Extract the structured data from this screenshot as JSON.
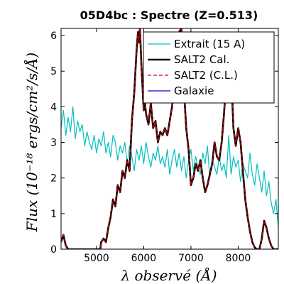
{
  "chart_data": {
    "type": "line",
    "title": "05D4bc : Spectre (Z=0.513)",
    "xlabel": "λ observé (Å)",
    "ylabel": "Flux (10⁻¹⁸ ergs/cm²/s/Å)",
    "xlim": [
      4250,
      8850
    ],
    "ylim": [
      0,
      6.2
    ],
    "xticks": [
      5000,
      6000,
      7000,
      8000
    ],
    "yticks": [
      0,
      1,
      2,
      3,
      4,
      5,
      6
    ],
    "legend_position": "top-right",
    "grid": false,
    "series": [
      {
        "name": "Extrait (15 A)",
        "color": "#00bfbf",
        "style": "solid",
        "x": [
          4250,
          4300,
          4350,
          4400,
          4450,
          4500,
          4550,
          4600,
          4650,
          4700,
          4750,
          4800,
          4850,
          4900,
          4950,
          5000,
          5050,
          5100,
          5150,
          5200,
          5250,
          5300,
          5350,
          5400,
          5450,
          5500,
          5550,
          5600,
          5650,
          5700,
          5750,
          5800,
          5850,
          5900,
          5950,
          6000,
          6050,
          6100,
          6150,
          6200,
          6250,
          6300,
          6350,
          6400,
          6450,
          6500,
          6550,
          6600,
          6650,
          6700,
          6750,
          6800,
          6850,
          6900,
          6950,
          7000,
          7050,
          7100,
          7150,
          7200,
          7250,
          7300,
          7350,
          7400,
          7450,
          7500,
          7550,
          7600,
          7650,
          7700,
          7750,
          7800,
          7850,
          7900,
          7950,
          8000,
          8050,
          8100,
          8150,
          8200,
          8250,
          8300,
          8350,
          8400,
          8450,
          8500,
          8550,
          8600,
          8650,
          8700,
          8750,
          8800,
          8850
        ],
        "y": [
          3.4,
          3.9,
          3.2,
          3.7,
          3.3,
          4.0,
          3.1,
          3.6,
          3.3,
          3.5,
          2.9,
          3.3,
          3.0,
          2.8,
          3.2,
          2.7,
          3.1,
          2.9,
          3.3,
          2.7,
          3.0,
          2.6,
          3.2,
          3.0,
          2.5,
          2.9,
          2.7,
          3.0,
          2.4,
          2.9,
          2.6,
          2.2,
          2.8,
          2.5,
          2.9,
          2.4,
          3.0,
          2.6,
          2.3,
          2.7,
          2.5,
          2.9,
          2.4,
          2.6,
          2.3,
          2.8,
          2.1,
          2.5,
          2.8,
          2.3,
          2.7,
          2.2,
          2.6,
          2.0,
          2.5,
          2.8,
          2.2,
          2.6,
          2.3,
          2.1,
          2.7,
          2.4,
          2.9,
          2.0,
          2.5,
          2.3,
          2.1,
          2.6,
          2.2,
          2.4,
          2.0,
          3.2,
          2.1,
          2.6,
          2.3,
          2.5,
          1.9,
          2.4,
          2.2,
          2.0,
          2.7,
          2.1,
          1.8,
          2.4,
          2.0,
          1.6,
          2.2,
          1.5,
          1.9,
          1.3,
          1.0,
          1.4,
          0.6
        ]
      },
      {
        "name": "SALT2 Cal.",
        "color": "#000000",
        "style": "solid",
        "x": [
          4250,
          4300,
          4350,
          4400,
          4450,
          4500,
          4550,
          4600,
          4700,
          4800,
          4900,
          5000,
          5080,
          5100,
          5150,
          5200,
          5250,
          5300,
          5350,
          5400,
          5450,
          5500,
          5550,
          5600,
          5650,
          5700,
          5750,
          5800,
          5850,
          5880,
          5900,
          5920,
          5950,
          6000,
          6020,
          6050,
          6100,
          6150,
          6200,
          6250,
          6300,
          6350,
          6400,
          6450,
          6500,
          6550,
          6600,
          6650,
          6700,
          6750,
          6800,
          6850,
          6900,
          6950,
          6980,
          7000,
          7050,
          7100,
          7150,
          7200,
          7250,
          7300,
          7350,
          7400,
          7450,
          7500,
          7550,
          7600,
          7650,
          7700,
          7750,
          7800,
          7850,
          7900,
          7950,
          8000,
          8050,
          8100,
          8150,
          8200,
          8250,
          8300,
          8350,
          8400,
          8450,
          8500,
          8550,
          8600,
          8650,
          8700,
          8750,
          8800,
          8850
        ],
        "y": [
          0.2,
          0.4,
          0.1,
          0.0,
          0.0,
          0.0,
          0.0,
          0.0,
          0.0,
          0.0,
          0.0,
          0.0,
          0.0,
          0.2,
          0.3,
          0.2,
          0.6,
          0.9,
          1.4,
          1.2,
          1.8,
          1.6,
          2.2,
          2.0,
          2.5,
          2.2,
          3.6,
          4.4,
          5.6,
          6.1,
          5.8,
          6.2,
          5.2,
          3.9,
          4.2,
          3.8,
          3.5,
          4.1,
          3.4,
          3.6,
          3.0,
          3.3,
          3.2,
          3.4,
          3.2,
          3.6,
          4.0,
          4.6,
          5.6,
          6.1,
          6.2,
          4.5,
          3.4,
          2.8,
          2.2,
          1.8,
          2.0,
          2.4,
          2.2,
          2.5,
          2.0,
          1.6,
          1.8,
          2.1,
          2.4,
          3.0,
          2.6,
          2.5,
          3.0,
          3.8,
          4.8,
          5.6,
          5.0,
          3.4,
          2.9,
          3.4,
          3.0,
          2.2,
          1.4,
          0.9,
          0.5,
          0.2,
          0.05,
          0.0,
          0.0,
          0.3,
          0.8,
          0.6,
          0.3,
          0.1,
          0.0,
          0.0,
          0.0
        ]
      },
      {
        "name": "SALT2 (C.L.)",
        "color": "#d00000",
        "style": "dashed",
        "x": [
          4250,
          4300,
          4350,
          4400,
          4450,
          4500,
          4550,
          4600,
          4700,
          4800,
          4900,
          5000,
          5080,
          5100,
          5150,
          5200,
          5250,
          5300,
          5350,
          5400,
          5450,
          5500,
          5550,
          5600,
          5650,
          5700,
          5750,
          5800,
          5850,
          5880,
          5900,
          5920,
          5950,
          6000,
          6020,
          6050,
          6100,
          6150,
          6200,
          6250,
          6300,
          6350,
          6400,
          6450,
          6500,
          6550,
          6600,
          6650,
          6700,
          6750,
          6800,
          6850,
          6900,
          6950,
          6980,
          7000,
          7050,
          7100,
          7150,
          7200,
          7250,
          7300,
          7350,
          7400,
          7450,
          7500,
          7550,
          7600,
          7650,
          7700,
          7750,
          7800,
          7850,
          7900,
          7950,
          8000,
          8050,
          8100,
          8150,
          8200,
          8250,
          8300,
          8350,
          8400,
          8450,
          8500,
          8550,
          8600,
          8650,
          8700,
          8750,
          8800,
          8850
        ],
        "y": [
          0.2,
          0.4,
          0.1,
          0.0,
          0.0,
          0.0,
          0.0,
          0.0,
          0.0,
          0.0,
          0.0,
          0.0,
          0.0,
          0.2,
          0.3,
          0.2,
          0.6,
          0.9,
          1.4,
          1.2,
          1.8,
          1.6,
          2.2,
          2.0,
          2.5,
          2.2,
          3.6,
          4.4,
          5.6,
          6.1,
          5.8,
          6.2,
          5.2,
          3.9,
          4.2,
          3.8,
          3.5,
          4.1,
          3.4,
          3.6,
          3.0,
          3.3,
          3.2,
          3.4,
          3.2,
          3.6,
          4.0,
          4.6,
          5.6,
          6.1,
          6.2,
          4.5,
          3.4,
          2.8,
          2.2,
          1.8,
          2.0,
          2.4,
          2.2,
          2.5,
          2.0,
          1.6,
          1.8,
          2.1,
          2.4,
          3.0,
          2.6,
          2.5,
          3.0,
          3.8,
          4.8,
          5.6,
          5.0,
          3.4,
          2.9,
          3.4,
          3.0,
          2.2,
          1.4,
          0.9,
          0.5,
          0.2,
          0.05,
          0.0,
          0.0,
          0.3,
          0.8,
          0.6,
          0.3,
          0.1,
          0.0,
          0.0,
          0.0
        ]
      },
      {
        "name": "Galaxie",
        "color": "#0000cc",
        "style": "solid",
        "x": [
          4250,
          8850
        ],
        "y": [
          0,
          0
        ]
      }
    ]
  }
}
